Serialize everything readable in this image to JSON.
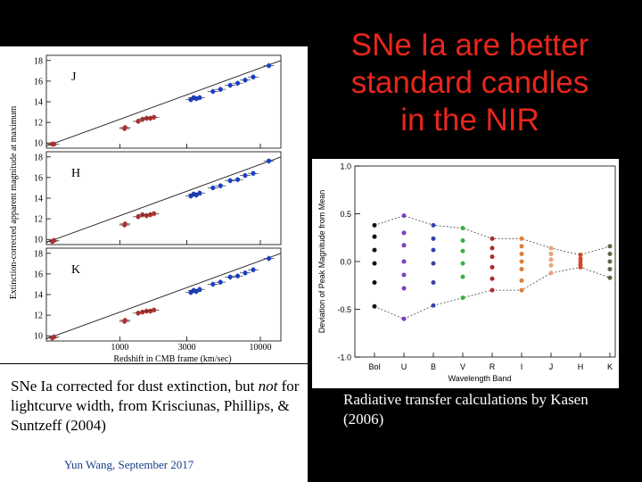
{
  "title": {
    "lines": [
      "SNe Ia are better",
      "standard candles",
      "in the NIR"
    ],
    "color": "#e8261b"
  },
  "left_caption": {
    "part1": "SNe Ia corrected for dust extinction, but ",
    "emph": "not",
    "part2": " for lightcurve width, from Krisciunas, Phillips, & Suntzeff (2004)"
  },
  "right_caption": "Radiative transfer calculations by Kasen (2006)",
  "footer": "Yun Wang, September 2017",
  "chart_data": [
    {
      "type": "scatter",
      "title": "",
      "xlabel": "Redshift in CMB frame (km/sec)",
      "ylabel": "Extinction-corrected apparent magnitude at maximum",
      "xscale": "log",
      "xlim": [
        300,
        14000
      ],
      "xticks": [
        1000,
        3000,
        10000
      ],
      "xtick_labels": [
        "1000",
        "3000",
        "10000"
      ],
      "panels": [
        {
          "band": "J",
          "ylim": [
            9.5,
            18.5
          ],
          "yticks": [
            10,
            12,
            14,
            16,
            18
          ],
          "points": [
            [
              330,
              9.9
            ],
            [
              340,
              9.9
            ],
            [
              1080,
              11.4
            ],
            [
              1090,
              11.5
            ],
            [
              1350,
              12.1
            ],
            [
              1450,
              12.3
            ],
            [
              1550,
              12.4
            ],
            [
              1650,
              12.4
            ],
            [
              1750,
              12.5
            ],
            [
              3200,
              14.2
            ],
            [
              3350,
              14.4
            ],
            [
              3500,
              14.3
            ],
            [
              3700,
              14.4
            ],
            [
              4600,
              15.0
            ],
            [
              5200,
              15.2
            ],
            [
              6100,
              15.6
            ],
            [
              6900,
              15.8
            ],
            [
              7800,
              16.1
            ],
            [
              8900,
              16.4
            ],
            [
              11500,
              17.5
            ]
          ],
          "line": [
            [
              300,
              9.7
            ],
            [
              14000,
              18.0
            ]
          ]
        },
        {
          "band": "H",
          "ylim": [
            9.5,
            18.5
          ],
          "yticks": [
            10,
            12,
            14,
            16,
            18
          ],
          "points": [
            [
              330,
              9.8
            ],
            [
              340,
              9.9
            ],
            [
              1080,
              11.4
            ],
            [
              1090,
              11.5
            ],
            [
              1350,
              12.2
            ],
            [
              1450,
              12.4
            ],
            [
              1550,
              12.3
            ],
            [
              1650,
              12.4
            ],
            [
              1750,
              12.5
            ],
            [
              3200,
              14.2
            ],
            [
              3350,
              14.4
            ],
            [
              3500,
              14.3
            ],
            [
              3700,
              14.5
            ],
            [
              4600,
              15.0
            ],
            [
              5200,
              15.2
            ],
            [
              6100,
              15.7
            ],
            [
              6900,
              15.8
            ],
            [
              7800,
              16.2
            ],
            [
              8900,
              16.4
            ],
            [
              11500,
              17.6
            ]
          ],
          "line": [
            [
              300,
              9.7
            ],
            [
              14000,
              18.0
            ]
          ]
        },
        {
          "band": "K",
          "ylim": [
            9.5,
            18.5
          ],
          "yticks": [
            10,
            12,
            14,
            16,
            18
          ],
          "points": [
            [
              330,
              9.8
            ],
            [
              340,
              9.9
            ],
            [
              1080,
              11.4
            ],
            [
              1090,
              11.5
            ],
            [
              1350,
              12.2
            ],
            [
              1450,
              12.3
            ],
            [
              1550,
              12.4
            ],
            [
              1650,
              12.4
            ],
            [
              1750,
              12.5
            ],
            [
              3200,
              14.2
            ],
            [
              3350,
              14.4
            ],
            [
              3500,
              14.3
            ],
            [
              3700,
              14.5
            ],
            [
              4600,
              15.0
            ],
            [
              5200,
              15.2
            ],
            [
              6100,
              15.7
            ],
            [
              6900,
              15.8
            ],
            [
              7800,
              16.1
            ],
            [
              8900,
              16.4
            ],
            [
              11500,
              17.5
            ]
          ],
          "line": [
            [
              300,
              9.7
            ],
            [
              14000,
              18.0
            ]
          ]
        }
      ],
      "point_colors": [
        "#1a3fc4",
        "#b03030"
      ]
    },
    {
      "type": "scatter",
      "title": "",
      "xlabel": "Wavelength Band",
      "ylabel": "Deviation of Peak Magnitude from Mean",
      "ylim": [
        -1.0,
        1.0
      ],
      "yticks": [
        -1.0,
        -0.5,
        0.0,
        0.5,
        1.0
      ],
      "ytick_labels": [
        "-1.0",
        "-0.5",
        "0.0",
        "0.5",
        "1.0"
      ],
      "categories": [
        "Bol",
        "U",
        "B",
        "V",
        "R",
        "I",
        "J",
        "H",
        "K"
      ],
      "series": [
        {
          "name": "Bol",
          "color": "#111111",
          "values": [
            0.38,
            0.26,
            0.12,
            -0.02,
            -0.22,
            -0.47
          ]
        },
        {
          "name": "U",
          "color": "#7a3fbf",
          "values": [
            0.48,
            0.3,
            0.17,
            0.0,
            -0.14,
            -0.28,
            -0.6
          ]
        },
        {
          "name": "B",
          "color": "#3a3fa8",
          "values": [
            0.38,
            0.24,
            0.12,
            -0.02,
            -0.22,
            -0.46
          ]
        },
        {
          "name": "V",
          "color": "#3cb043",
          "values": [
            0.35,
            0.22,
            0.11,
            -0.02,
            -0.16,
            -0.38
          ]
        },
        {
          "name": "R",
          "color": "#b02a2a",
          "values": [
            0.24,
            0.14,
            0.05,
            -0.06,
            -0.18,
            -0.3
          ]
        },
        {
          "name": "I",
          "color": "#e07e3c",
          "values": [
            0.24,
            0.16,
            0.08,
            0.0,
            -0.08,
            -0.2,
            -0.3
          ]
        },
        {
          "name": "J",
          "color": "#e8a27a",
          "values": [
            0.14,
            0.08,
            0.02,
            -0.04,
            -0.12
          ]
        },
        {
          "name": "H",
          "color": "#d04a2a",
          "values": [
            0.07,
            0.03,
            0.0,
            -0.03,
            -0.06
          ]
        },
        {
          "name": "K",
          "color": "#5a6a4a",
          "values": [
            0.16,
            0.08,
            0.0,
            -0.08,
            -0.17
          ]
        }
      ],
      "envelope_upper": [
        0.38,
        0.48,
        0.38,
        0.35,
        0.24,
        0.24,
        0.14,
        0.07,
        0.16
      ],
      "envelope_lower": [
        -0.47,
        -0.6,
        -0.46,
        -0.38,
        -0.3,
        -0.3,
        -0.12,
        -0.06,
        -0.17
      ]
    }
  ]
}
